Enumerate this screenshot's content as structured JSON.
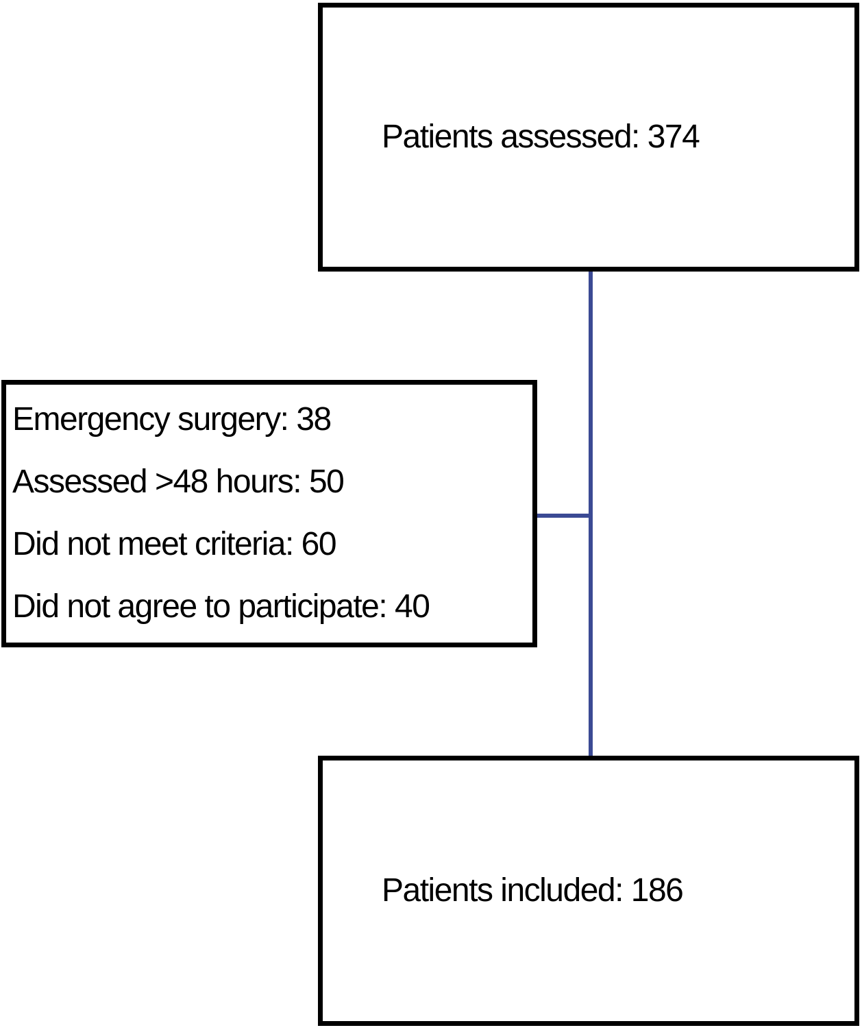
{
  "flowchart": {
    "top_box": {
      "text": "Patients assessed: 374"
    },
    "exclusion_box": {
      "items": [
        "Emergency surgery: 38",
        "Assessed >48 hours: 50",
        "Did not meet criteria: 60",
        "Did not agree to participate: 40"
      ]
    },
    "bottom_box": {
      "text": "Patients included: 186"
    },
    "colors": {
      "connector": "#3B4A94",
      "box_border": "#000000",
      "background": "#FFFFFF",
      "text": "#000000"
    }
  }
}
